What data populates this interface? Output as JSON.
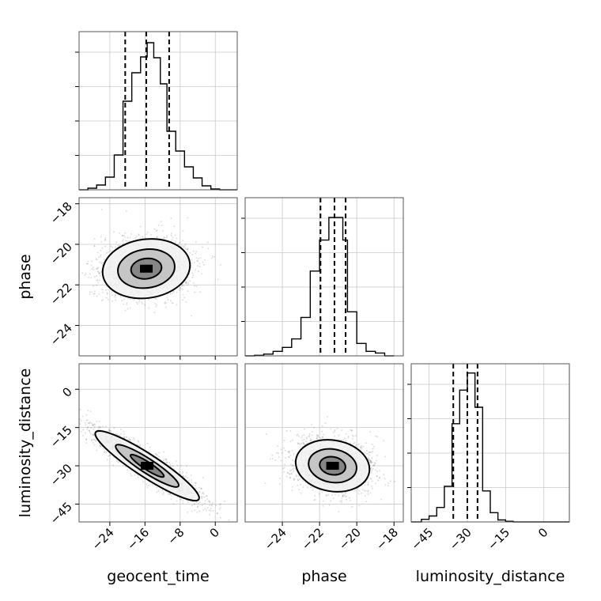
{
  "chart_data": {
    "type": "corner",
    "parameters": [
      "geocent_time",
      "phase",
      "luminosity_distance"
    ],
    "grid": true,
    "histograms": [
      {
        "parameter": "geocent_time",
        "range": [
          -31,
          5
        ],
        "bin_edges": [
          -31,
          -29,
          -27,
          -25,
          -23,
          -21,
          -19,
          -17,
          -15.5,
          -14,
          -12.5,
          -11,
          -9,
          -7,
          -5,
          -3,
          -1,
          1,
          3,
          5
        ],
        "counts": [
          0,
          2,
          6,
          16,
          44,
          112,
          148,
          168,
          186,
          167,
          134,
          74,
          49,
          29,
          15,
          5,
          1,
          0,
          0
        ],
        "ylim": [
          0,
          200
        ],
        "quantiles": [
          -20.5,
          -15.7,
          -10.5
        ]
      },
      {
        "parameter": "phase",
        "range": [
          -26,
          -17.5
        ],
        "bin_edges": [
          -26,
          -25.5,
          -25,
          -24.5,
          -24,
          -23.5,
          -23,
          -22.5,
          -22,
          -21.5,
          -21,
          -20.75,
          -20.5,
          -20,
          -19.5,
          -19,
          -18.5,
          -18
        ],
        "counts": [
          0,
          1,
          3,
          8,
          15,
          30,
          68,
          150,
          205,
          245,
          245,
          205,
          78,
          22,
          8,
          5,
          0
        ],
        "ylim": [
          0,
          280
        ],
        "quantiles": [
          -21.95,
          -21.2,
          -20.6
        ]
      },
      {
        "parameter": "luminosity_distance",
        "range": [
          -52,
          10
        ],
        "bin_edges": [
          -52,
          -48,
          -45,
          -42,
          -39,
          -36,
          -33,
          -30,
          -27,
          -24,
          -21,
          -18,
          -15,
          -12,
          -9,
          10
        ],
        "counts": [
          0,
          4,
          9,
          22,
          54,
          149,
          200,
          226,
          174,
          47,
          14,
          3,
          1,
          0,
          0
        ],
        "ylim": [
          0,
          240
        ],
        "quantiles": [
          -35.5,
          -30,
          -26
        ]
      }
    ],
    "scatter_panels": [
      {
        "x": "geocent_time",
        "y": "phase",
        "xlim": [
          -31,
          5
        ],
        "ylim": [
          -25.5,
          -17.7
        ],
        "center": [
          -15.7,
          -21.2
        ],
        "level_ellipses": [
          {
            "rx": 10,
            "ry": 1.45,
            "angle_deg": 8
          },
          {
            "rx": 6.5,
            "ry": 0.95,
            "angle_deg": 8
          },
          {
            "rx": 3.5,
            "ry": 0.5,
            "angle_deg": 8
          }
        ]
      },
      {
        "x": "geocent_time",
        "y": "luminosity_distance",
        "xlim": [
          -31,
          5
        ],
        "ylim": [
          -52,
          10
        ],
        "center": [
          -15.5,
          -30
        ],
        "level_ellipses": [
          {
            "rx": 14,
            "ry": 4.5,
            "angle_deg": -33
          },
          {
            "rx": 8.5,
            "ry": 2.8,
            "angle_deg": -33
          },
          {
            "rx": 4.5,
            "ry": 1.5,
            "angle_deg": -33
          }
        ]
      },
      {
        "x": "phase",
        "y": "luminosity_distance",
        "xlim": [
          -26,
          -17.5
        ],
        "ylim": [
          -52,
          10
        ],
        "center": [
          -21.3,
          -30
        ],
        "level_ellipses": [
          {
            "rx": 2,
            "ry": 10,
            "angle_deg": -10
          },
          {
            "rx": 1.3,
            "ry": 6.5,
            "angle_deg": -10
          },
          {
            "rx": 0.7,
            "ry": 3.5,
            "angle_deg": -10
          }
        ]
      }
    ],
    "ticks": {
      "geocent_time": [
        -24,
        -16,
        -8,
        0
      ],
      "phase_x": [
        -24,
        -22,
        -20,
        -18
      ],
      "phase_y": [
        -18,
        -20,
        -22,
        -24
      ],
      "luminosity_distance": [
        -45,
        -30,
        -15,
        0
      ]
    },
    "tick_labels": {
      "geocent_time": [
        "−24",
        "−16",
        "−8",
        "0"
      ],
      "phase_x": [
        "−24",
        "−22",
        "−20",
        "−18"
      ],
      "phase_y": [
        "−18",
        "−20",
        "−22",
        "−24"
      ],
      "luminosity_distance": [
        "−45",
        "−30",
        "−15",
        "0"
      ]
    },
    "axis_labels": {
      "x": [
        "geocent_time",
        "phase",
        "luminosity_distance"
      ],
      "y": [
        "phase",
        "luminosity_distance"
      ]
    }
  }
}
